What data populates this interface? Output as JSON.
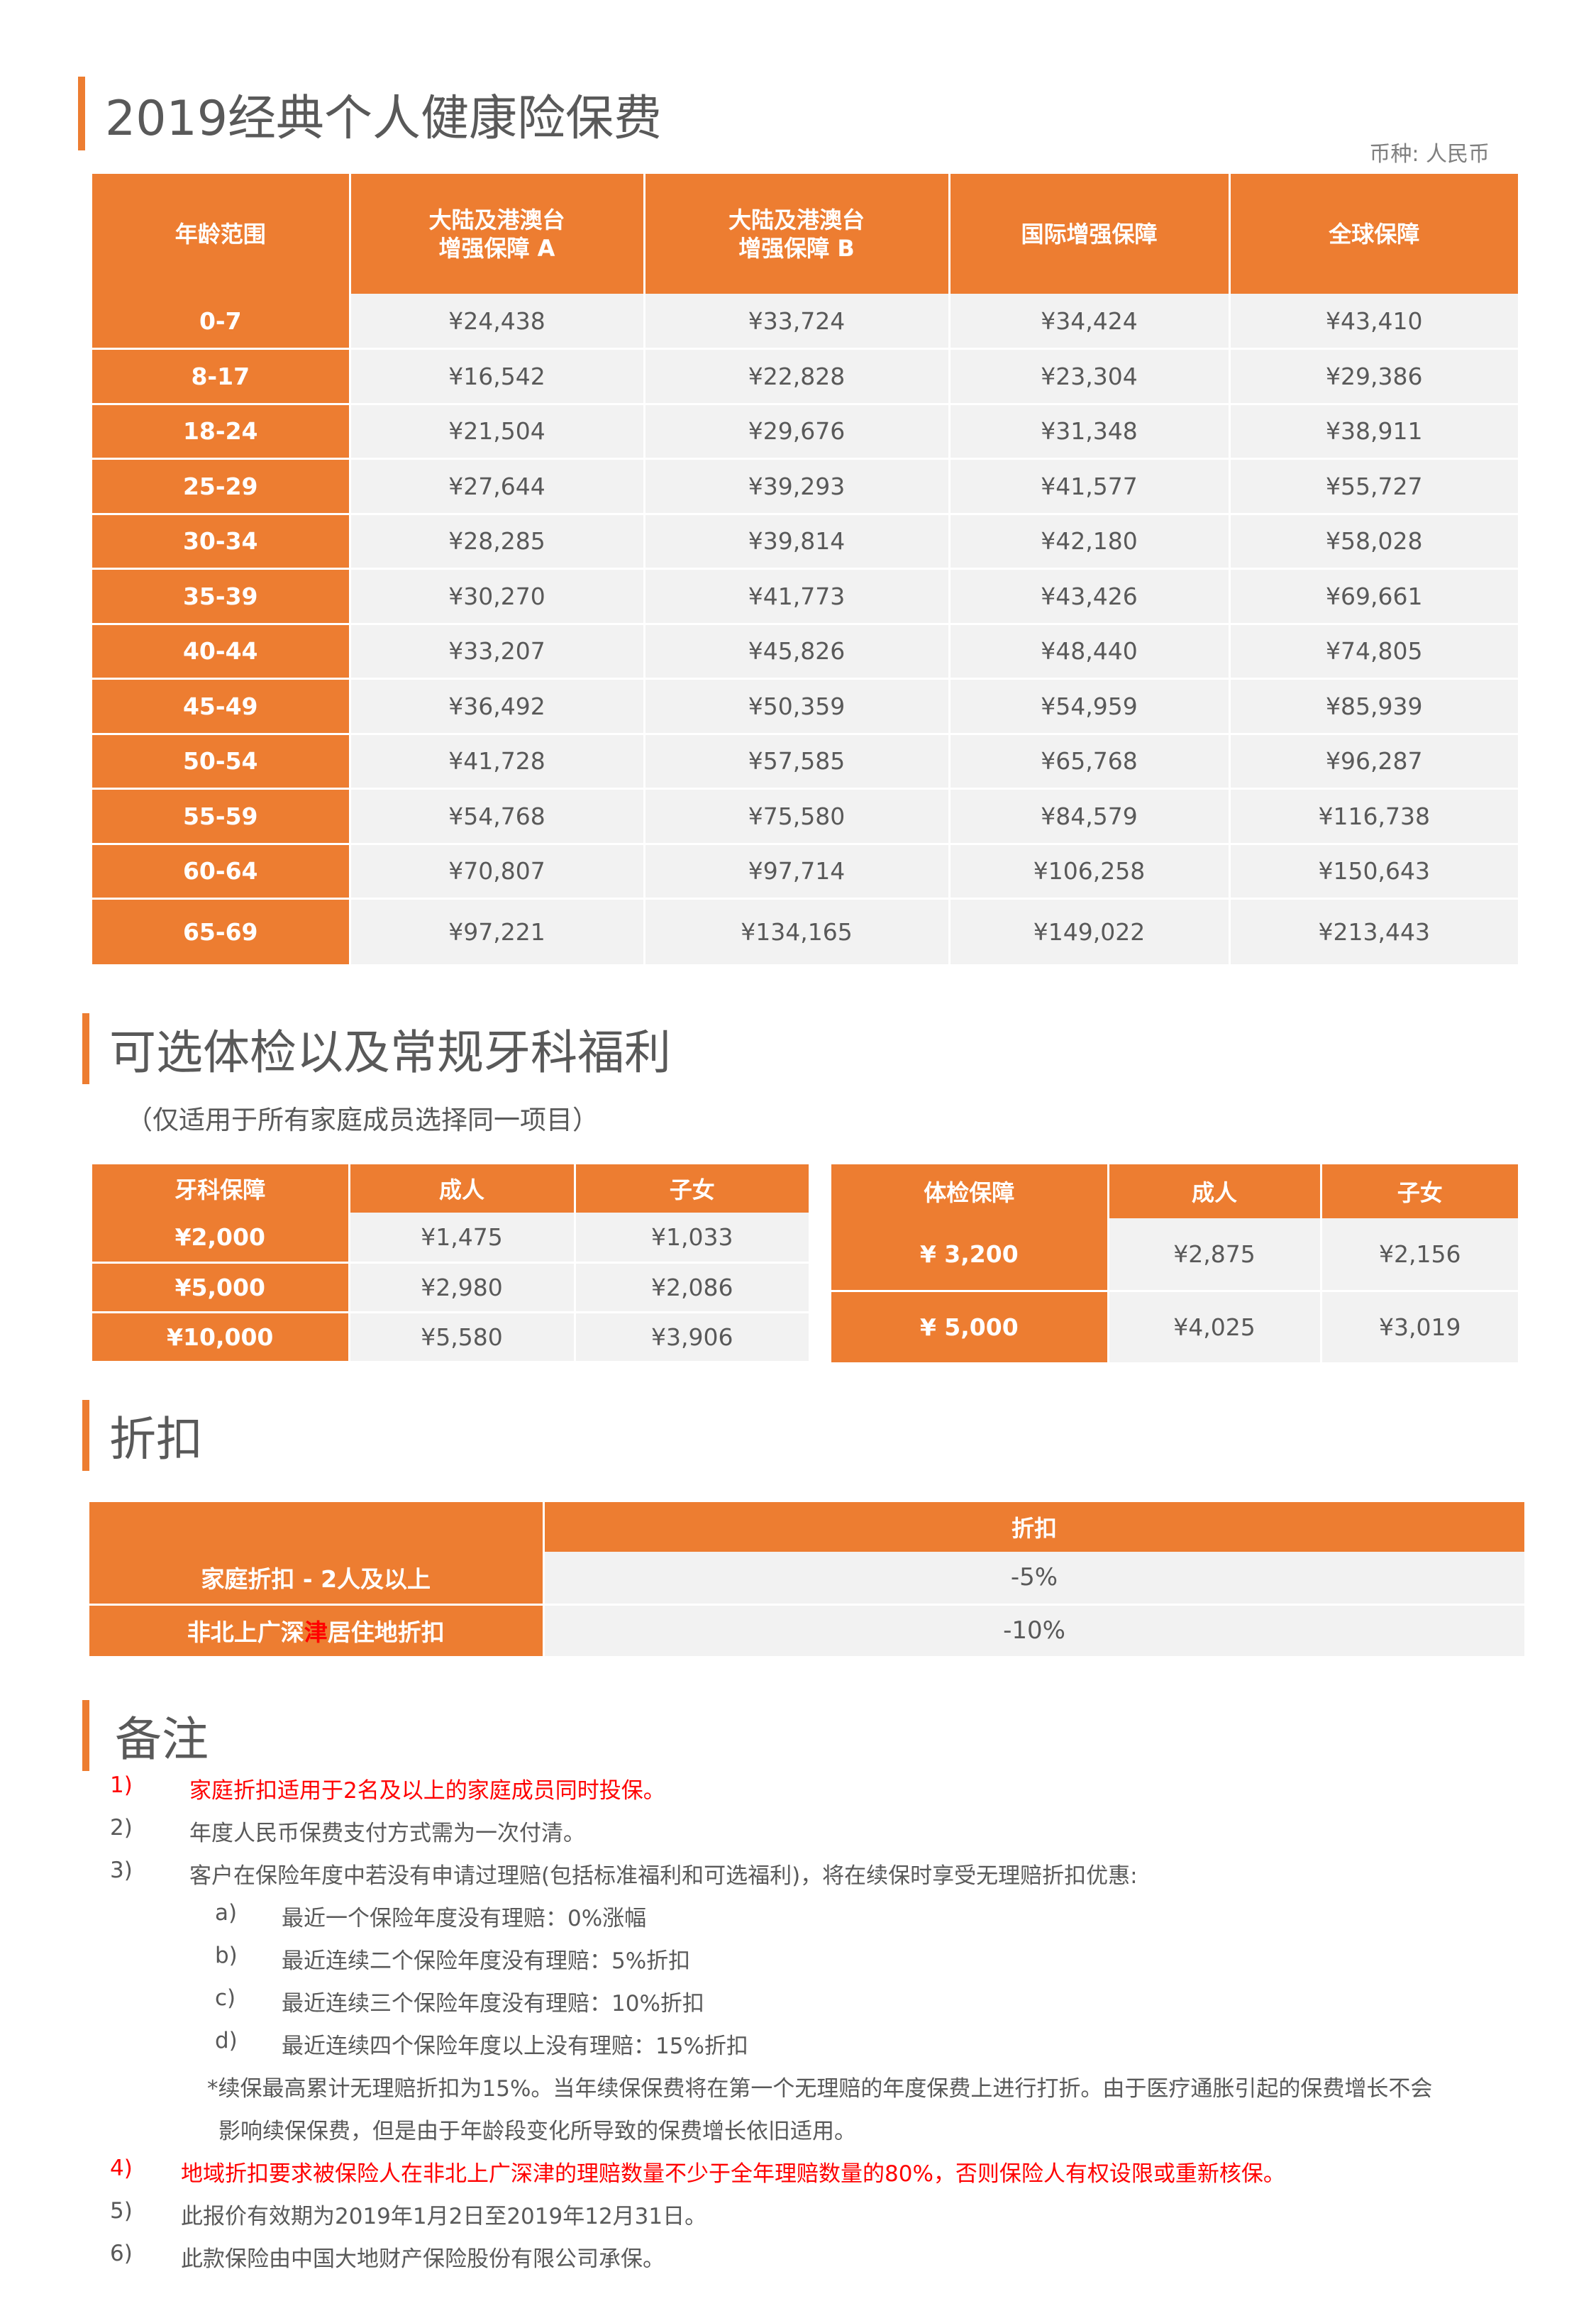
{
  "section1": {
    "title": "2019经典个人健康险保费",
    "currency_label": "币种: 人民币",
    "headers": [
      "年龄范围",
      "大陆及港澳台\n增强保障 A",
      "大陆及港澳台\n增强保障 B",
      "国际增强保障",
      "全球保障"
    ],
    "rows": [
      {
        "age": "0-7",
        "values": [
          "¥24,438",
          "¥33,724",
          "¥34,424",
          "¥43,410"
        ]
      },
      {
        "age": "8-17",
        "values": [
          "¥16,542",
          "¥22,828",
          "¥23,304",
          "¥29,386"
        ]
      },
      {
        "age": "18-24",
        "values": [
          "¥21,504",
          "¥29,676",
          "¥31,348",
          "¥38,911"
        ]
      },
      {
        "age": "25-29",
        "values": [
          "¥27,644",
          "¥39,293",
          "¥41,577",
          "¥55,727"
        ]
      },
      {
        "age": "30-34",
        "values": [
          "¥28,285",
          "¥39,814",
          "¥42,180",
          "¥58,028"
        ]
      },
      {
        "age": "35-39",
        "values": [
          "¥30,270",
          "¥41,773",
          "¥43,426",
          "¥69,661"
        ]
      },
      {
        "age": "40-44",
        "values": [
          "¥33,207",
          "¥45,826",
          "¥48,440",
          "¥74,805"
        ]
      },
      {
        "age": "45-49",
        "values": [
          "¥36,492",
          "¥50,359",
          "¥54,959",
          "¥85,939"
        ]
      },
      {
        "age": "50-54",
        "values": [
          "¥41,728",
          "¥57,585",
          "¥65,768",
          "¥96,287"
        ]
      },
      {
        "age": "55-59",
        "values": [
          "¥54,768",
          "¥75,580",
          "¥84,579",
          "¥116,738"
        ]
      },
      {
        "age": "60-64",
        "values": [
          "¥70,807",
          "¥97,714",
          "¥106,258",
          "¥150,643"
        ]
      },
      {
        "age": "65-69",
        "values": [
          "¥97,221",
          "¥134,165",
          "¥149,022",
          "¥213,443"
        ]
      }
    ]
  },
  "section2": {
    "title": "可选体检以及常规牙科福利",
    "subnote": "（仅适用于所有家庭成员选择同一项目）",
    "dental": {
      "headers": [
        "牙科保障",
        "成人",
        "子女"
      ],
      "rows": [
        {
          "label": "¥2,000",
          "adult": "¥1,475",
          "child": "¥1,033"
        },
        {
          "label": "¥5,000",
          "adult": "¥2,980",
          "child": "¥2,086"
        },
        {
          "label": "¥10,000",
          "adult": "¥5,580",
          "child": "¥3,906"
        }
      ]
    },
    "checkup": {
      "headers": [
        "体检保障",
        "成人",
        "子女"
      ],
      "rows": [
        {
          "label": "¥ 3,200",
          "adult": "¥2,875",
          "child": "¥2,156"
        },
        {
          "label": "¥ 5,000",
          "adult": "¥4,025",
          "child": "¥3,019"
        }
      ]
    }
  },
  "section3": {
    "title": "折扣",
    "header_blank": "",
    "header": "折扣",
    "rows": [
      {
        "label": "家庭折扣 - 2人及以上",
        "value": "-5%"
      },
      {
        "label_pre": "非北上广深",
        "label_red": "津",
        "label_post": "居住地折扣",
        "value": "-10%"
      }
    ]
  },
  "section4": {
    "title": "备注",
    "notes": [
      {
        "num": "1)",
        "text": "家庭折扣适用于2名及以上的家庭成员同时投保。",
        "color": "#FF0000"
      },
      {
        "num": "2)",
        "text": "年度人民币保费支付方式需为一次付清。"
      },
      {
        "num": "3)",
        "text": "客户在保险年度中若没有申请过理赔(包括标准福利和可选福利)，将在续保时享受无理赔折扣优惠:"
      },
      {
        "num": "a)",
        "text": "最近一个保险年度没有理赔：0%涨幅"
      },
      {
        "num": "b)",
        "text": "最近连续二个保险年度没有理赔：5%折扣"
      },
      {
        "num": "c)",
        "text": "最近连续三个保险年度没有理赔：10%折扣"
      },
      {
        "num": "d)",
        "text": "最近连续四个保险年度以上没有理赔：15%折扣"
      },
      {
        "num": "",
        "text": "*续保最高累计无理赔折扣为15%。当年续保保费将在第一个无理赔的年度保费上进行打折。由于医疗通胀引起的保费增长不会"
      },
      {
        "num": "",
        "text": "影响续保保费，但是由于年龄段变化所导致的保费增长依旧适用。"
      },
      {
        "num": "4)",
        "text": "地域折扣要求被保险人在非北上广深津的理赔数量不少于全年理赔数量的80%，否则保险人有权设限或重新核保。",
        "color": "#FF0000"
      },
      {
        "num": "5)",
        "text": "此报价有效期为2019年1月2日至2019年12月31日。"
      },
      {
        "num": "6)",
        "text": "此款保险由中国大地财产保险股份有限公司承保。"
      }
    ]
  },
  "colors": {
    "accent": "#ED7D31",
    "cell": "#F2F2F2",
    "text": "#595959",
    "alert": "#FF0000"
  }
}
